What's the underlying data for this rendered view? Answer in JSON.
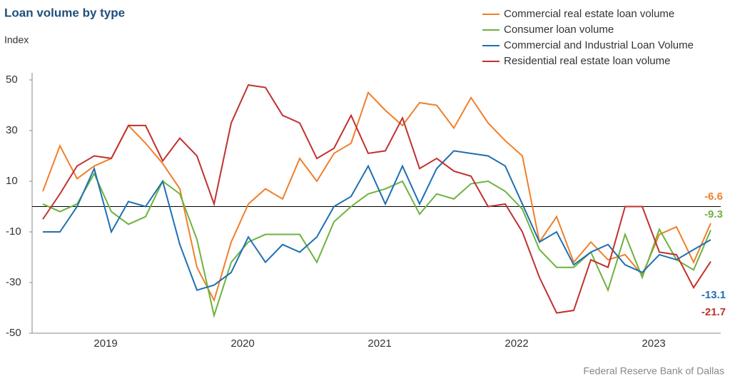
{
  "chart_data": {
    "type": "line",
    "title": "Loan volume by type",
    "y_label": "Index",
    "source": "Federal Reserve Bank of Dallas",
    "x": [
      0,
      1,
      2,
      3,
      4,
      5,
      6,
      7,
      8,
      9,
      10,
      11,
      12,
      13,
      14,
      15,
      16,
      17,
      18,
      19,
      20,
      21,
      22,
      23,
      24,
      25,
      26,
      27,
      28,
      29,
      30,
      31,
      32,
      33,
      34,
      35,
      36,
      37,
      38,
      39
    ],
    "xlim": [
      0,
      39
    ],
    "xticks": [
      {
        "value": 3.67,
        "label": "2019"
      },
      {
        "value": 11.67,
        "label": "2020"
      },
      {
        "value": 19.67,
        "label": "2021"
      },
      {
        "value": 27.67,
        "label": "2022"
      },
      {
        "value": 35.67,
        "label": "2023"
      }
    ],
    "ylim": [
      -50,
      50
    ],
    "yticks": [
      -50,
      -30,
      -10,
      10,
      30,
      50
    ],
    "grid": false,
    "series": [
      {
        "name": "Commercial real estate loan volume",
        "color": "#f07f2a",
        "values": [
          6,
          24,
          11,
          16,
          19,
          32,
          25,
          17,
          7,
          -24,
          -37,
          -14,
          1,
          7,
          3,
          19,
          10,
          21,
          25,
          45,
          38,
          32,
          41,
          40,
          31,
          43,
          33,
          26,
          20,
          -14,
          -4,
          -22,
          -14,
          -21,
          -19,
          -27,
          -11,
          -8,
          -22,
          -6.6
        ]
      },
      {
        "name": "Consumer loan volume",
        "color": "#6cb33f",
        "values": [
          1,
          -2,
          1,
          13,
          -2,
          -7,
          -4,
          10,
          5,
          -13,
          -43,
          -22,
          -14,
          -11,
          -11,
          -11,
          -22,
          -6,
          0,
          5,
          7,
          10,
          -3,
          5,
          3,
          9,
          10,
          6,
          -1,
          -17,
          -24,
          -24,
          -18,
          -33,
          -11,
          -28,
          -9,
          -21,
          -25,
          -9.3
        ]
      },
      {
        "name": "Commercial and Industrial Loan Volume",
        "color": "#1f6fb2",
        "values": [
          -10,
          -10,
          0,
          15,
          -10,
          2,
          0,
          10,
          -15,
          -33,
          -31,
          -26,
          -12,
          -22,
          -15,
          -18,
          -12,
          0,
          4,
          16,
          1,
          16,
          1,
          15,
          22,
          21,
          20,
          16,
          1,
          -14,
          -10,
          -23,
          -18,
          -15,
          -23,
          -26,
          -19,
          -21,
          -17,
          -13.1
        ]
      },
      {
        "name": "Residential real estate loan volume",
        "color": "#c0322f",
        "values": [
          -5,
          5,
          16,
          20,
          19,
          32,
          32,
          18,
          27,
          20,
          1,
          33,
          48,
          47,
          36,
          33,
          19,
          23,
          36,
          21,
          22,
          35,
          15,
          19,
          14,
          12,
          0,
          1,
          -10,
          -28,
          -42,
          -41,
          -21,
          -24,
          0,
          0,
          -18,
          -19,
          -32,
          -21.7
        ]
      }
    ]
  }
}
